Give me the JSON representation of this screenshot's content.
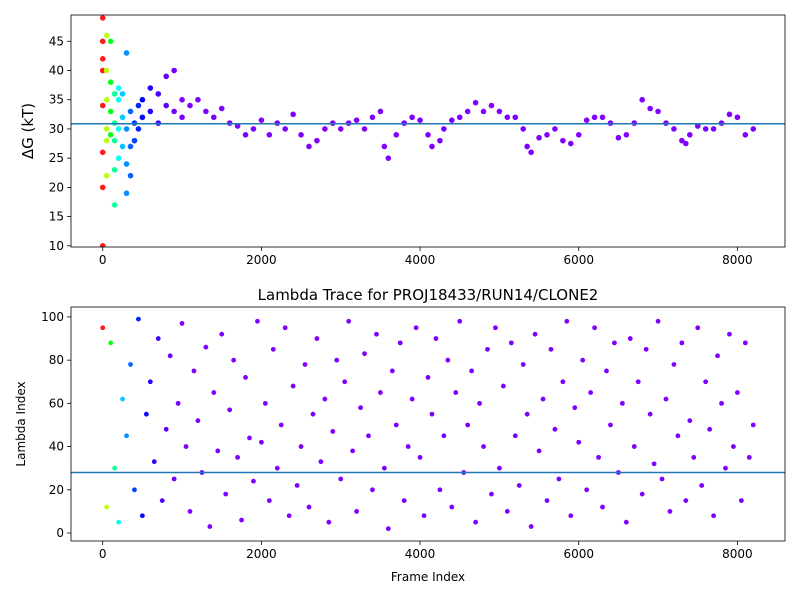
{
  "chart_data": [
    {
      "type": "scatter",
      "ylabel": "ΔG (kT)",
      "colormap": "rainbow",
      "hline": 30.9,
      "hline_color": "#1f77b4",
      "xlim": [
        -400,
        8600
      ],
      "ylim": [
        9.8,
        49.5
      ],
      "xticks": [
        0,
        2000,
        4000,
        6000,
        8000
      ],
      "yticks": [
        10,
        15,
        20,
        25,
        30,
        35,
        40,
        45
      ],
      "x": [
        0,
        0,
        0,
        0,
        0,
        0,
        0,
        0,
        50,
        50,
        50,
        50,
        50,
        50,
        100,
        100,
        100,
        100,
        150,
        150,
        150,
        150,
        150,
        200,
        200,
        200,
        200,
        250,
        250,
        250,
        300,
        300,
        300,
        300,
        350,
        350,
        350,
        400,
        400,
        450,
        450,
        500,
        500,
        600,
        600,
        700,
        700,
        800,
        800,
        900,
        900,
        1000,
        1000,
        1100,
        1200,
        1300,
        1400,
        1500,
        1600,
        1700,
        1800,
        1900,
        2000,
        2100,
        2200,
        2300,
        2400,
        2500,
        2600,
        2700,
        2800,
        2900,
        3000,
        3100,
        3200,
        3300,
        3400,
        3500,
        3550,
        3600,
        3700,
        3800,
        3900,
        4000,
        4100,
        4150,
        4250,
        4300,
        4400,
        4500,
        4600,
        4700,
        4800,
        4900,
        5000,
        5100,
        5200,
        5300,
        5350,
        5400,
        5500,
        5600,
        5700,
        5800,
        5900,
        6000,
        6100,
        6200,
        6300,
        6400,
        6500,
        6600,
        6700,
        6800,
        6900,
        7000,
        7100,
        7200,
        7300,
        7350,
        7400,
        7500,
        7600,
        7700,
        7800,
        7900,
        8000,
        8100,
        8200
      ],
      "values": [
        10,
        20,
        26,
        34,
        40,
        42,
        45,
        49,
        40,
        35,
        30,
        28,
        22,
        46,
        45,
        38,
        33,
        29,
        17,
        23,
        28,
        31,
        36,
        25,
        30,
        35,
        37,
        27,
        32,
        36,
        19,
        24,
        30,
        43,
        22,
        27,
        33,
        28,
        31,
        30,
        34,
        32,
        35,
        33,
        37,
        31,
        36,
        34,
        39,
        33,
        40,
        32,
        35,
        34,
        35,
        33,
        32,
        33.5,
        31,
        30.5,
        29,
        30,
        31.5,
        29,
        31,
        30,
        32.5,
        29,
        27,
        28,
        30,
        31,
        30,
        31,
        31.5,
        30,
        32,
        33,
        27,
        25,
        29,
        31,
        32,
        31.5,
        29,
        27,
        28,
        30,
        31.5,
        32,
        33,
        34.5,
        33,
        34,
        33,
        32,
        32,
        30,
        27,
        26,
        28.5,
        29,
        30,
        28,
        27.5,
        29,
        31.5,
        32,
        32,
        31,
        28.5,
        29,
        31,
        35,
        33.5,
        33,
        31,
        30,
        28,
        27.5,
        29,
        30.5,
        30,
        30,
        31,
        32.5,
        32,
        29,
        30
      ]
    },
    {
      "type": "scatter",
      "title": "Lambda Trace for PROJ18433/RUN14/CLONE2",
      "xlabel": "Frame Index",
      "ylabel": "Lambda Index",
      "colormap": "rainbow",
      "hline": 28,
      "hline_color": "#1f77b4",
      "xlim": [
        -400,
        8600
      ],
      "ylim": [
        -3.7,
        104.6
      ],
      "xticks": [
        0,
        2000,
        4000,
        6000,
        8000
      ],
      "yticks": [
        0,
        20,
        40,
        60,
        80,
        100
      ],
      "x": [
        0,
        50,
        100,
        150,
        200,
        250,
        300,
        350,
        400,
        450,
        500,
        550,
        600,
        650,
        700,
        750,
        800,
        850,
        900,
        950,
        1000,
        1050,
        1100,
        1150,
        1200,
        1250,
        1300,
        1350,
        1400,
        1450,
        1500,
        1550,
        1600,
        1650,
        1700,
        1750,
        1800,
        1850,
        1900,
        1950,
        2000,
        2050,
        2100,
        2150,
        2200,
        2250,
        2300,
        2350,
        2400,
        2450,
        2500,
        2550,
        2600,
        2650,
        2700,
        2750,
        2800,
        2850,
        2900,
        2950,
        3000,
        3050,
        3100,
        3150,
        3200,
        3250,
        3300,
        3350,
        3400,
        3450,
        3500,
        3550,
        3600,
        3650,
        3700,
        3750,
        3800,
        3850,
        3900,
        3950,
        4000,
        4050,
        4100,
        4150,
        4200,
        4250,
        4300,
        4350,
        4400,
        4450,
        4500,
        4550,
        4600,
        4650,
        4700,
        4750,
        4800,
        4850,
        4900,
        4950,
        5000,
        5050,
        5100,
        5150,
        5200,
        5250,
        5300,
        5350,
        5400,
        5450,
        5500,
        5550,
        5600,
        5650,
        5700,
        5750,
        5800,
        5850,
        5900,
        5950,
        6000,
        6050,
        6100,
        6150,
        6200,
        6250,
        6300,
        6350,
        6400,
        6450,
        6500,
        6550,
        6600,
        6650,
        6700,
        6750,
        6800,
        6850,
        6900,
        6950,
        7000,
        7050,
        7100,
        7150,
        7200,
        7250,
        7300,
        7350,
        7400,
        7450,
        7500,
        7550,
        7600,
        7650,
        7700,
        7750,
        7800,
        7850,
        7900,
        7950,
        8000,
        8050,
        8100,
        8150,
        8200
      ],
      "values": [
        95,
        12,
        88,
        30,
        5,
        62,
        45,
        78,
        20,
        99,
        8,
        55,
        70,
        33,
        90,
        15,
        48,
        82,
        25,
        60,
        97,
        40,
        10,
        75,
        52,
        28,
        86,
        3,
        65,
        38,
        92,
        18,
        57,
        80,
        35,
        6,
        72,
        44,
        24,
        98,
        42,
        60,
        15,
        85,
        30,
        50,
        95,
        8,
        68,
        22,
        40,
        78,
        12,
        55,
        90,
        33,
        62,
        5,
        47,
        80,
        25,
        70,
        98,
        38,
        10,
        58,
        83,
        45,
        20,
        92,
        65,
        30,
        2,
        75,
        50,
        88,
        15,
        40,
        62,
        95,
        35,
        8,
        72,
        55,
        90,
        20,
        45,
        80,
        12,
        65,
        98,
        28,
        50,
        75,
        5,
        60,
        40,
        85,
        18,
        95,
        30,
        68,
        10,
        88,
        45,
        22,
        78,
        55,
        3,
        92,
        38,
        62,
        15,
        85,
        48,
        25,
        70,
        98,
        8,
        58,
        42,
        80,
        20,
        65,
        95,
        35,
        12,
        75,
        50,
        88,
        28,
        60,
        5,
        90,
        40,
        70,
        18,
        85,
        55,
        32,
        98,
        25,
        62,
        10,
        78,
        45,
        88,
        15,
        52,
        35,
        95,
        22,
        70,
        48,
        8,
        82,
        60,
        30,
        92,
        40,
        65,
        15,
        88,
        35,
        50
      ]
    }
  ]
}
